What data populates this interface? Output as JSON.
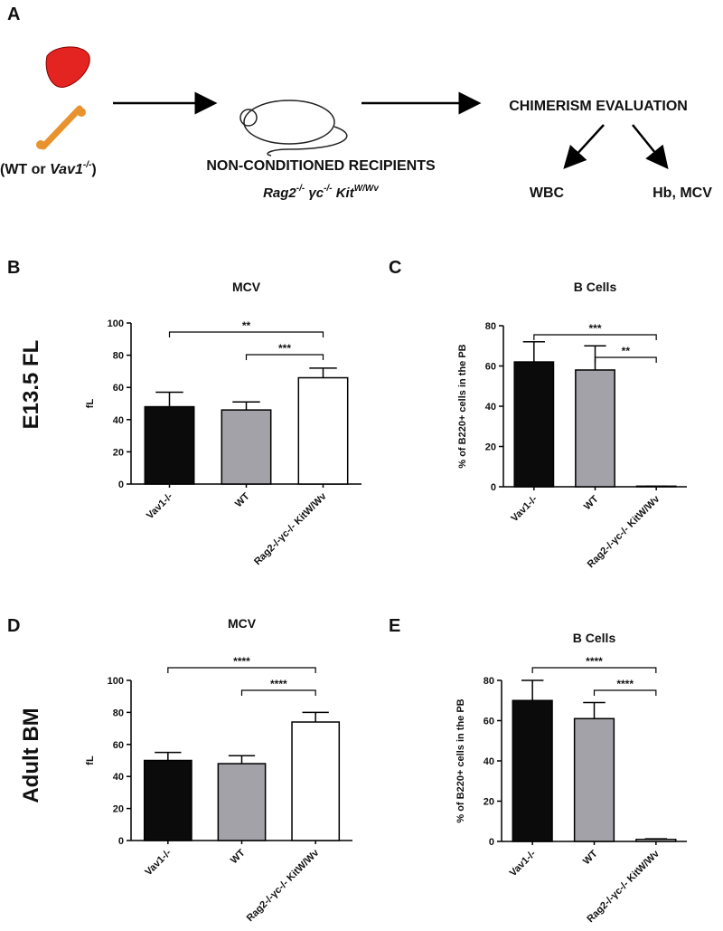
{
  "panel_a": {
    "letter": "A",
    "source": [
      "(WT or ",
      "Vav1",
      "-/-",
      ")"
    ],
    "recipients": "NON-CONDITIONED RECIPIENTS",
    "strain": [
      "Rag2",
      "-/-",
      " γc",
      "-/-",
      " Kit",
      "W/Wv"
    ],
    "evaluation": "CHIMERISM EVALUATION",
    "outcomes": [
      "WBC",
      "Hb, MCV"
    ]
  },
  "row_labels": [
    "E13.5 FL",
    "Adult BM"
  ],
  "chart_data": [
    {
      "type": "bar",
      "letter": "B",
      "title": "MCV",
      "y_label": "fL",
      "categories": [
        "Vav1-/-",
        "WT",
        "Rag2-/-γc-/- KitW/Wv"
      ],
      "values": [
        48,
        46,
        66
      ],
      "errors": [
        9,
        5,
        6
      ],
      "colors": [
        "#0b0b0b",
        "#a2a2a8",
        "#ffffff"
      ],
      "ylim": [
        0,
        100
      ],
      "yticks": [
        0,
        20,
        40,
        60,
        80,
        100
      ],
      "significance": [
        {
          "from": 0,
          "to": 2,
          "label": "**"
        },
        {
          "from": 1,
          "to": 2,
          "label": "***"
        }
      ]
    },
    {
      "type": "bar",
      "letter": "C",
      "title": "B Cells",
      "y_label": "% of B220+ cells in the PB",
      "categories": [
        "Vav1-/-",
        "WT",
        "Rag2-/-γc-/- KitW/Wv"
      ],
      "values": [
        62,
        58,
        0.3
      ],
      "errors": [
        10,
        12,
        0
      ],
      "colors": [
        "#0b0b0b",
        "#a2a2a8",
        "#ffffff"
      ],
      "ylim": [
        0,
        80
      ],
      "yticks": [
        0,
        20,
        40,
        60,
        80
      ],
      "significance": [
        {
          "from": 0,
          "to": 2,
          "label": "***"
        },
        {
          "from": 1,
          "to": 2,
          "label": "**"
        }
      ]
    },
    {
      "type": "bar",
      "letter": "D",
      "title": "MCV",
      "y_label": "fL",
      "categories": [
        "Vav1-/-",
        "WT",
        "Rag2-/-γc-/- KitW/Wv"
      ],
      "values": [
        50,
        48,
        74
      ],
      "errors": [
        5,
        5,
        6
      ],
      "colors": [
        "#0b0b0b",
        "#a2a2a8",
        "#ffffff"
      ],
      "ylim": [
        0,
        100
      ],
      "yticks": [
        0,
        20,
        40,
        60,
        80,
        100
      ],
      "significance": [
        {
          "from": 0,
          "to": 2,
          "label": "****"
        },
        {
          "from": 1,
          "to": 2,
          "label": "****"
        }
      ]
    },
    {
      "type": "bar",
      "letter": "E",
      "title": "B Cells",
      "y_label": "% of B220+ cells in the PB",
      "categories": [
        "Vav1-/-",
        "WT",
        "Rag2-/-γc-/- KitW/Wv"
      ],
      "values": [
        70,
        61,
        1
      ],
      "errors": [
        10,
        8,
        0.3
      ],
      "colors": [
        "#0b0b0b",
        "#a2a2a8",
        "#ffffff"
      ],
      "ylim": [
        0,
        80
      ],
      "yticks": [
        0,
        20,
        40,
        60,
        80
      ],
      "significance": [
        {
          "from": 0,
          "to": 2,
          "label": "****"
        },
        {
          "from": 1,
          "to": 2,
          "label": "****"
        }
      ]
    }
  ]
}
